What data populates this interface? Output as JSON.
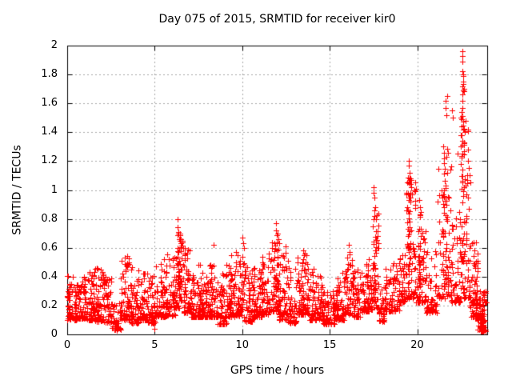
{
  "window": {
    "kind": "gnuplot-style scatter plot image",
    "background": "#ffffff"
  },
  "header": {
    "title": "Day 075 of 2015, SRMTID for receiver kir0"
  },
  "axes": {
    "x_label": "GPS time / hours",
    "y_label": "SRMTID / TECUs",
    "x_ticks": [
      {
        "value": 0,
        "label": "0"
      },
      {
        "value": 5,
        "label": "5"
      },
      {
        "value": 10,
        "label": "10"
      },
      {
        "value": 15,
        "label": "15"
      },
      {
        "value": 20,
        "label": "20"
      }
    ],
    "y_ticks": [
      {
        "value": 0,
        "label": "0"
      },
      {
        "value": 0.2,
        "label": "0.2"
      },
      {
        "value": 0.4,
        "label": "0.4"
      },
      {
        "value": 0.6,
        "label": "0.6"
      },
      {
        "value": 0.8,
        "label": "0.8"
      },
      {
        "value": 1,
        "label": "1"
      },
      {
        "value": 1.2,
        "label": "1.2"
      },
      {
        "value": 1.4,
        "label": "1.4"
      },
      {
        "value": 1.6,
        "label": "1.6"
      },
      {
        "value": 1.8,
        "label": "1.8"
      },
      {
        "value": 2,
        "label": "2"
      }
    ]
  },
  "style": {
    "marker_color": "#ff0000",
    "axis_color": "#000000",
    "grid_color": "#a8a8a8",
    "background": "#ffffff"
  },
  "chart_data": {
    "type": "scatter",
    "title": "Day 075 of 2015, SRMTID for receiver kir0",
    "xlabel": "GPS time / hours",
    "ylabel": "SRMTID / TECUs",
    "xlim": [
      0,
      24
    ],
    "ylim": [
      0,
      2
    ],
    "x_tick_values": [
      0,
      5,
      10,
      15,
      20
    ],
    "y_tick_values": [
      0,
      0.2,
      0.4,
      0.6,
      0.8,
      1,
      1.2,
      1.4,
      1.6,
      1.8,
      2
    ],
    "grid": true,
    "legend_position": "none",
    "marker": "plus",
    "marker_size_px": 7,
    "marker_color": "#ff0000",
    "seed": 20150751,
    "description": "Dense noisy scatter of SRMTID values vs GPS time. Baseline band ~0.1-0.4 TECU all day with a dip near hour 2.6-3.1 and 14.6-15.3, moderate peaks ~0.8 near hour 6.3, ~0.77 near hour 12, spike ~1.0 at hour 17.5, spikes 1.1-1.2 near hours 19.5-20, 1.3-1.65 near hours 21.2-22.1, maximum ~1.95 near hour 22.6, then values fall to near 0 by hour 23.9.",
    "segment_fields": [
      "t_start_hours",
      "t_end_hours",
      "n_points",
      "y_min_TECU",
      "y_max_TECU",
      "low_bias_exponent"
    ],
    "density_segments": [
      [
        0.0,
        0.15,
        25,
        0.1,
        0.42,
        1.6
      ],
      [
        0.1,
        0.6,
        55,
        0.1,
        0.4,
        2.6
      ],
      [
        0.6,
        1.1,
        60,
        0.11,
        0.4,
        2.4
      ],
      [
        1.1,
        1.6,
        60,
        0.1,
        0.44,
        2.4
      ],
      [
        1.6,
        2.1,
        60,
        0.09,
        0.46,
        2.2
      ],
      [
        2.1,
        2.55,
        50,
        0.08,
        0.4,
        2.2
      ],
      [
        2.55,
        3.05,
        40,
        0.03,
        0.22,
        1.8
      ],
      [
        3.05,
        3.55,
        55,
        0.1,
        0.54,
        2.0
      ],
      [
        3.55,
        4.1,
        60,
        0.08,
        0.48,
        2.2
      ],
      [
        4.1,
        4.6,
        55,
        0.1,
        0.46,
        2.2
      ],
      [
        4.6,
        5.05,
        50,
        0.08,
        0.42,
        2.2
      ],
      [
        5.05,
        5.6,
        60,
        0.12,
        0.5,
        2.2
      ],
      [
        5.6,
        6.15,
        65,
        0.13,
        0.56,
        2.1
      ],
      [
        6.15,
        6.6,
        55,
        0.18,
        0.72,
        1.7
      ],
      [
        6.28,
        6.4,
        15,
        0.3,
        0.75,
        1.5
      ],
      [
        6.6,
        7.1,
        60,
        0.15,
        0.6,
        2.2
      ],
      [
        7.1,
        7.6,
        60,
        0.12,
        0.5,
        2.4
      ],
      [
        7.6,
        8.1,
        60,
        0.12,
        0.46,
        2.4
      ],
      [
        8.1,
        8.6,
        60,
        0.12,
        0.5,
        2.4
      ],
      [
        8.6,
        9.1,
        55,
        0.07,
        0.44,
        2.3
      ],
      [
        9.1,
        9.6,
        60,
        0.12,
        0.5,
        2.2
      ],
      [
        9.6,
        10.1,
        60,
        0.13,
        0.58,
        2.1
      ],
      [
        10.1,
        10.6,
        55,
        0.09,
        0.5,
        2.3
      ],
      [
        10.6,
        11.1,
        60,
        0.12,
        0.46,
        2.3
      ],
      [
        11.1,
        11.6,
        60,
        0.14,
        0.54,
        2.1
      ],
      [
        11.6,
        12.1,
        60,
        0.16,
        0.64,
        1.9
      ],
      [
        11.9,
        12.05,
        15,
        0.3,
        0.74,
        1.5
      ],
      [
        12.1,
        12.6,
        55,
        0.1,
        0.58,
        2.1
      ],
      [
        12.6,
        13.1,
        55,
        0.08,
        0.5,
        2.2
      ],
      [
        13.1,
        13.85,
        85,
        0.14,
        0.56,
        2.1
      ],
      [
        13.85,
        14.6,
        75,
        0.1,
        0.46,
        2.3
      ],
      [
        14.6,
        15.3,
        65,
        0.07,
        0.3,
        2.0
      ],
      [
        15.3,
        15.85,
        60,
        0.1,
        0.46,
        2.2
      ],
      [
        15.85,
        16.35,
        60,
        0.14,
        0.56,
        2.1
      ],
      [
        16.35,
        16.9,
        55,
        0.12,
        0.46,
        2.3
      ],
      [
        16.9,
        17.45,
        65,
        0.16,
        0.52,
        2.1
      ],
      [
        17.45,
        17.8,
        40,
        0.18,
        0.9,
        1.8
      ],
      [
        17.5,
        17.62,
        15,
        0.3,
        1.0,
        1.5
      ],
      [
        17.8,
        18.15,
        35,
        0.09,
        0.32,
        1.9
      ],
      [
        18.15,
        19.0,
        80,
        0.16,
        0.5,
        2.2
      ],
      [
        19.0,
        19.35,
        40,
        0.22,
        0.55,
        2.0
      ],
      [
        19.35,
        19.95,
        70,
        0.25,
        1.1,
        1.9
      ],
      [
        19.45,
        19.6,
        25,
        0.4,
        1.15,
        1.5
      ],
      [
        19.95,
        20.5,
        60,
        0.22,
        0.85,
        2.0
      ],
      [
        20.05,
        20.2,
        20,
        0.3,
        0.9,
        1.6
      ],
      [
        20.5,
        21.15,
        60,
        0.15,
        0.6,
        2.2
      ],
      [
        21.15,
        21.95,
        75,
        0.25,
        1.3,
        2.0
      ],
      [
        21.5,
        21.7,
        25,
        0.4,
        1.3,
        1.6
      ],
      [
        21.95,
        22.45,
        55,
        0.22,
        0.85,
        2.1
      ],
      [
        22.45,
        23.0,
        75,
        0.25,
        1.5,
        1.9
      ],
      [
        22.55,
        22.7,
        30,
        0.5,
        1.9,
        1.6
      ],
      [
        23.0,
        23.45,
        55,
        0.12,
        0.65,
        2.0
      ],
      [
        23.3,
        23.45,
        25,
        0.1,
        0.55,
        1.8
      ],
      [
        23.45,
        23.95,
        55,
        0.02,
        0.3,
        1.9
      ],
      [
        23.6,
        23.85,
        30,
        0.03,
        0.18,
        1.5
      ]
    ],
    "peak_points": [
      [
        0.3,
        0.4
      ],
      [
        1.9,
        0.45
      ],
      [
        2.0,
        0.43
      ],
      [
        3.43,
        0.545
      ],
      [
        3.5,
        0.5
      ],
      [
        5.0,
        0.04
      ],
      [
        5.55,
        0.52
      ],
      [
        6.3,
        0.8
      ],
      [
        6.32,
        0.74
      ],
      [
        6.35,
        0.7
      ],
      [
        6.4,
        0.66
      ],
      [
        6.45,
        0.65
      ],
      [
        6.5,
        0.63
      ],
      [
        8.35,
        0.62
      ],
      [
        9.35,
        0.55
      ],
      [
        10.0,
        0.67
      ],
      [
        10.05,
        0.63
      ],
      [
        10.1,
        0.6
      ],
      [
        11.5,
        0.56
      ],
      [
        11.95,
        0.77
      ],
      [
        12.0,
        0.7
      ],
      [
        12.05,
        0.66
      ],
      [
        12.1,
        0.63
      ],
      [
        12.5,
        0.61
      ],
      [
        13.5,
        0.58
      ],
      [
        16.1,
        0.62
      ],
      [
        16.15,
        0.57
      ],
      [
        17.45,
        0.75
      ],
      [
        17.5,
        1.02
      ],
      [
        17.52,
        0.98
      ],
      [
        17.55,
        0.95
      ],
      [
        17.6,
        0.88
      ],
      [
        17.65,
        0.8
      ],
      [
        19.45,
        1.05
      ],
      [
        19.5,
        1.2
      ],
      [
        19.52,
        1.17
      ],
      [
        19.55,
        1.12
      ],
      [
        19.6,
        1.08
      ],
      [
        19.65,
        1.02
      ],
      [
        19.7,
        0.97
      ],
      [
        20.1,
        0.93
      ],
      [
        20.15,
        0.88
      ],
      [
        20.2,
        0.85
      ],
      [
        21.4,
        1.0
      ],
      [
        21.45,
        0.95
      ],
      [
        21.5,
        1.3
      ],
      [
        21.55,
        1.26
      ],
      [
        21.6,
        1.62
      ],
      [
        21.62,
        1.57
      ],
      [
        21.65,
        1.52
      ],
      [
        21.7,
        1.65
      ],
      [
        22.0,
        1.55
      ],
      [
        22.05,
        1.5
      ],
      [
        22.3,
        1.25
      ],
      [
        22.48,
        1.3
      ],
      [
        22.5,
        1.5
      ],
      [
        22.52,
        1.44
      ],
      [
        22.55,
        1.38
      ],
      [
        22.55,
        1.54
      ],
      [
        22.56,
        1.57
      ],
      [
        22.58,
        1.96
      ],
      [
        22.58,
        1.93
      ],
      [
        22.58,
        1.66
      ],
      [
        22.6,
        1.89
      ],
      [
        22.6,
        1.82
      ],
      [
        22.6,
        1.72
      ],
      [
        22.6,
        1.62
      ],
      [
        22.62,
        1.79
      ],
      [
        22.62,
        1.75
      ],
      [
        22.63,
        1.69
      ],
      [
        22.85,
        1.1
      ],
      [
        22.9,
        1.2
      ],
      [
        22.95,
        1.15
      ],
      [
        23.0,
        1.1
      ],
      [
        23.05,
        1.05
      ],
      [
        23.55,
        0.25
      ],
      [
        23.6,
        0.3
      ]
    ]
  }
}
